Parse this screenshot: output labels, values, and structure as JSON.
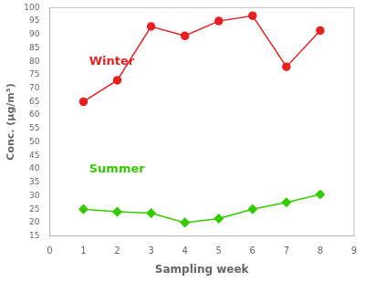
{
  "chart_data": {
    "type": "line",
    "x_label": "Sampling week",
    "y_label": "Conc. (μg/m³)",
    "x": [
      1,
      2,
      3,
      4,
      5,
      6,
      7,
      8
    ],
    "series": [
      {
        "color": "#e82020",
        "marker": "circle",
        "line_style": "solid",
        "values": [
          65,
          73,
          93,
          89.5,
          95,
          97,
          78,
          91.5
        ]
      },
      {
        "color": "#33cc00",
        "marker": "diamond",
        "line_style": "solid",
        "values": [
          25,
          24,
          23.5,
          20,
          21.5,
          25,
          27.5,
          30.5
        ]
      }
    ],
    "annotations": [
      {
        "text": "Winter",
        "color": "#e82020"
      },
      {
        "text": "Summer",
        "color": "#33cc00"
      }
    ],
    "xlim": [
      0,
      9
    ],
    "xticks": [
      0,
      1,
      2,
      3,
      4,
      5,
      6,
      7,
      8,
      9
    ],
    "ylim": [
      15,
      100
    ],
    "yticks": [
      15,
      20,
      25,
      30,
      35,
      40,
      45,
      50,
      55,
      60,
      65,
      70,
      75,
      80,
      85,
      90,
      95,
      100
    ],
    "grid": false
  }
}
